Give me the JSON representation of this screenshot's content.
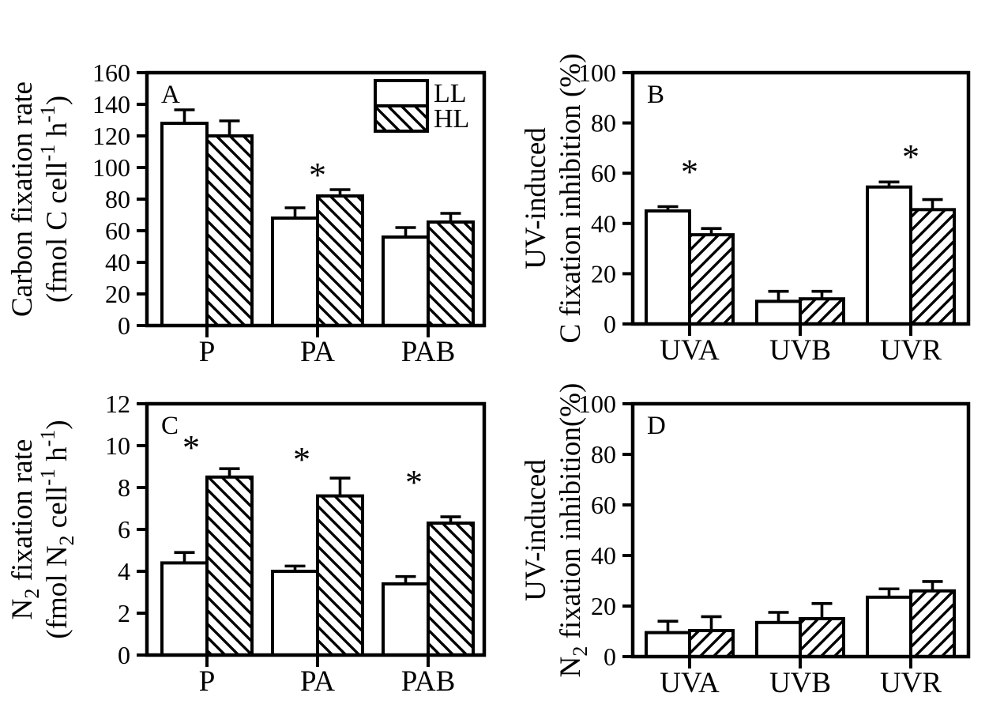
{
  "figure": {
    "background": "#ffffff",
    "ink": "#000000",
    "legend": {
      "items": [
        {
          "label": "LL",
          "swatch": "open"
        },
        {
          "label": "HL",
          "swatch": "hatch"
        }
      ]
    }
  },
  "chart_data": [
    {
      "id": "A",
      "type": "bar",
      "panel_label": "A",
      "ylabel_text": "Carbon fixation rate (fmol C cell-1 h-1)",
      "ylabel_lines": [
        [
          {
            "t": "Carbon fixation rate"
          }
        ],
        [
          {
            "t": "(fmol C cell"
          },
          {
            "t": "-1",
            "style": "sup"
          },
          {
            "t": " h"
          },
          {
            "t": "-1",
            "style": "sup"
          },
          {
            "t": ")"
          }
        ]
      ],
      "categories": [
        "P",
        "PA",
        "PAB"
      ],
      "series": [
        {
          "name": "LL",
          "fill": "open",
          "values": [
            128,
            68,
            56
          ],
          "errors": [
            8.5,
            6.5,
            6
          ]
        },
        {
          "name": "HL",
          "fill": "hatch",
          "values": [
            120,
            82,
            65.5
          ],
          "errors": [
            9.5,
            4,
            5.5
          ]
        }
      ],
      "ylim": [
        0,
        160
      ],
      "ytick_step": 20,
      "grid": false,
      "hatch_direction": "backslash",
      "significance_asterisks": [
        {
          "category": "PA",
          "y": 88,
          "dx": 0
        }
      ],
      "has_legend": true
    },
    {
      "id": "B",
      "type": "bar",
      "panel_label": "B",
      "ylabel_text": "UV-induced C fixation inhibition (%)",
      "ylabel_lines": [
        [
          {
            "t": "UV-induced"
          }
        ],
        [
          {
            "t": "C fixation inhibition (%)"
          }
        ]
      ],
      "categories": [
        "UVA",
        "UVB",
        "UVR"
      ],
      "series": [
        {
          "name": "LL",
          "fill": "open",
          "values": [
            45,
            9,
            54.5
          ],
          "errors": [
            1.7,
            4,
            2
          ]
        },
        {
          "name": "HL",
          "fill": "hatch",
          "values": [
            35.5,
            10,
            45.5
          ],
          "errors": [
            2.5,
            3,
            4
          ]
        }
      ],
      "ylim": [
        0,
        100
      ],
      "ytick_step": 20,
      "grid": false,
      "hatch_direction": "slash",
      "significance_asterisks": [
        {
          "category": "UVA",
          "y": 56,
          "dx": 0
        },
        {
          "category": "UVR",
          "y": 62,
          "dx": 0
        }
      ],
      "has_legend": false
    },
    {
      "id": "C",
      "type": "bar",
      "panel_label": "C",
      "ylabel_text": "N2 fixation rate (fmol N2 cell-1 h-1)",
      "ylabel_lines": [
        [
          {
            "t": "N"
          },
          {
            "t": "2",
            "style": "sub"
          },
          {
            "t": " fixation rate"
          }
        ],
        [
          {
            "t": "(fmol N"
          },
          {
            "t": "2",
            "style": "sub"
          },
          {
            "t": " cell"
          },
          {
            "t": "-1",
            "style": "sup"
          },
          {
            "t": " h"
          },
          {
            "t": "-1",
            "style": "sup"
          },
          {
            "t": ")"
          }
        ]
      ],
      "categories": [
        "P",
        "PA",
        "PAB"
      ],
      "series": [
        {
          "name": "LL",
          "fill": "open",
          "values": [
            4.4,
            4.0,
            3.4
          ],
          "errors": [
            0.5,
            0.25,
            0.35
          ]
        },
        {
          "name": "HL",
          "fill": "hatch",
          "values": [
            8.5,
            7.6,
            6.3
          ],
          "errors": [
            0.4,
            0.85,
            0.3
          ]
        }
      ],
      "ylim": [
        0,
        12
      ],
      "ytick_step": 2,
      "grid": false,
      "hatch_direction": "backslash",
      "significance_asterisks": [
        {
          "category": "P",
          "y": 9.35,
          "dx": -20
        },
        {
          "category": "PA",
          "y": 8.8,
          "dx": -20
        },
        {
          "category": "PAB",
          "y": 7.7,
          "dx": -18
        }
      ],
      "has_legend": false
    },
    {
      "id": "D",
      "type": "bar",
      "panel_label": "D",
      "ylabel_text": "UV-induced N2 fixation inhibition(%)",
      "ylabel_lines": [
        [
          {
            "t": "UV-induced"
          }
        ],
        [
          {
            "t": "N"
          },
          {
            "t": "2",
            "style": "sub"
          },
          {
            "t": " fixation inhibition(%)"
          }
        ]
      ],
      "categories": [
        "UVA",
        "UVB",
        "UVR"
      ],
      "series": [
        {
          "name": "LL",
          "fill": "open",
          "values": [
            9.5,
            13.5,
            23.5
          ],
          "errors": [
            4.5,
            4,
            3.3
          ]
        },
        {
          "name": "HL",
          "fill": "hatch",
          "values": [
            10.3,
            15,
            26
          ],
          "errors": [
            5.5,
            6,
            3.7
          ]
        }
      ],
      "ylim": [
        0,
        100
      ],
      "ytick_step": 20,
      "grid": false,
      "hatch_direction": "slash",
      "significance_asterisks": [],
      "has_legend": false
    }
  ]
}
